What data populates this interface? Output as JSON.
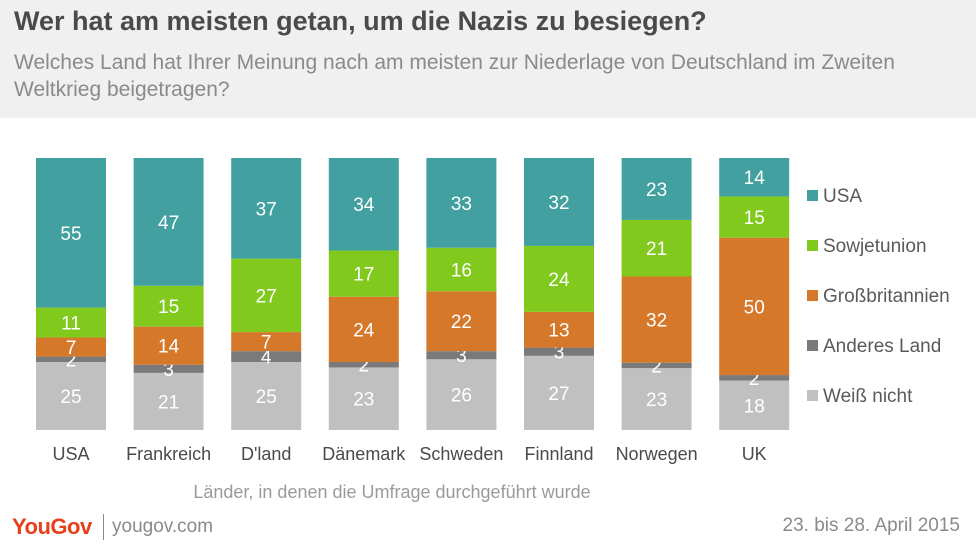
{
  "header": {
    "title": "Wer hat am meisten getan, um die Nazis zu besiegen?",
    "subtitle": "Welches Land hat Ihrer Meinung nach am meisten zur Niederlage von Deutschland im Zweiten Weltkrieg beigetragen?"
  },
  "footer": {
    "logo": "YouGov",
    "url": "yougov.com",
    "date": "23. bis 28. April 2015"
  },
  "chart_data": {
    "type": "bar",
    "stacked": true,
    "categories": [
      "USA",
      "Frankreich",
      "D'land",
      "Dänemark",
      "Schweden",
      "Finnland",
      "Norwegen",
      "UK"
    ],
    "xlabel": "Länder, in denen die Umfrage durchgeführt wurde",
    "ylim": [
      0,
      100
    ],
    "grid": false,
    "legend_position": "right",
    "series": [
      {
        "name": "Weiß nicht",
        "color": "#c0c0c0",
        "values": [
          25,
          21,
          25,
          23,
          26,
          27,
          23,
          18
        ]
      },
      {
        "name": "Anderes Land",
        "color": "#7a7a7a",
        "values": [
          2,
          3,
          4,
          2,
          3,
          3,
          2,
          2
        ]
      },
      {
        "name": "Großbritannien",
        "color": "#d6782a",
        "values": [
          7,
          14,
          7,
          24,
          22,
          13,
          32,
          50
        ]
      },
      {
        "name": "Sowjetunion",
        "color": "#82c91e",
        "values": [
          11,
          15,
          27,
          17,
          16,
          24,
          21,
          15
        ]
      },
      {
        "name": "USA",
        "color": "#42a0a0",
        "values": [
          55,
          47,
          37,
          34,
          33,
          32,
          23,
          14
        ]
      }
    ]
  }
}
